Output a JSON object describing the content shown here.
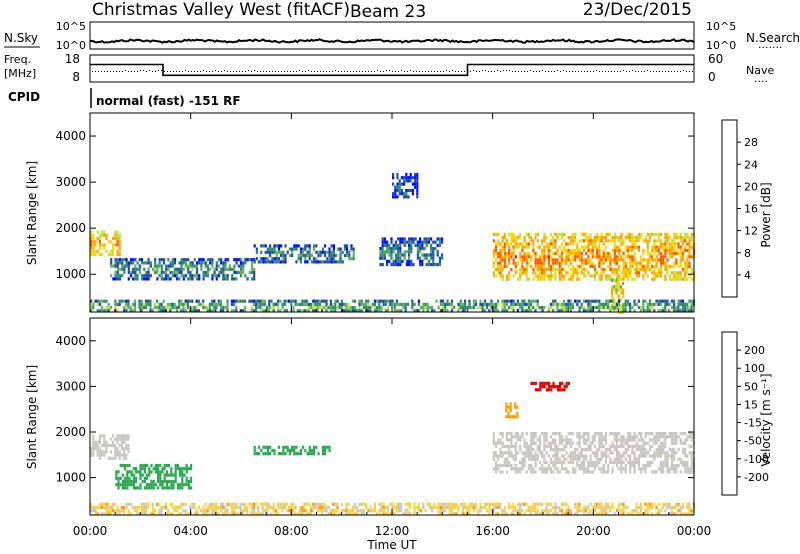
{
  "header": {
    "station": "Christmas Valley West (fitACF)",
    "beam": "Beam 23",
    "date": "23/Dec/2015"
  },
  "sky_panel": {
    "left_label": "N.Sky",
    "left_ticks": [
      "10^5",
      "10^0"
    ],
    "right_ticks": [
      "10^5",
      "10^0"
    ],
    "right_label": "N.Search",
    "right_legend_dots": "......."
  },
  "freq_panel": {
    "label_top": "Freq.",
    "label_unit": "[MHz]",
    "left_ticks": [
      "18",
      "8"
    ],
    "right_ticks": [
      "60",
      "0"
    ],
    "right_label": "Nave",
    "right_legend_dots": "...."
  },
  "cpid": {
    "label": "CPID",
    "text": "normal (fast) -151 RF"
  },
  "power_panel": {
    "ylabel": "Slant Range [km]",
    "yticks": [
      "4000",
      "3000",
      "2000",
      "1000"
    ],
    "colorbar_label": "Power [dB]",
    "colorbar_ticks": [
      "28",
      "24",
      "20",
      "16",
      "12",
      "8",
      "4"
    ],
    "colors": [
      "#e80000",
      "#ff5a00",
      "#ffa500",
      "#ffd500",
      "#b9e63c",
      "#5fb35f",
      "#2f8a6e",
      "#1e4ea8",
      "#0010ff"
    ]
  },
  "velocity_panel": {
    "ylabel": "Slant Range [km]",
    "yticks": [
      "4000",
      "3000",
      "2000",
      "1000"
    ],
    "colorbar_label": "Velocity [m s⁻¹]",
    "colorbar_ticks": [
      "200",
      "100",
      "50",
      "15",
      "-15",
      "-50",
      "-100",
      "-200"
    ],
    "colors": [
      "#1a22b0",
      "#1f66b8",
      "#2aa84e",
      "#7ed23a",
      "#c8c8c0",
      "#ffd23c",
      "#ff9a00",
      "#ff4a00",
      "#e80000"
    ],
    "ground_scatter_color": "#c8c8c0"
  },
  "time_axis": {
    "label": "Time UT",
    "ticks": [
      "00:00",
      "04:00",
      "08:00",
      "12:00",
      "16:00",
      "20:00",
      "00:00"
    ]
  },
  "chart_data": {
    "type": "heatmap",
    "title": "Christmas Valley West (fitACF) Beam 23",
    "date": "23/Dec/2015",
    "x_range_hours_ut": [
      0,
      24
    ],
    "y_range_km": [
      180,
      4500
    ],
    "frequency": {
      "segments": [
        {
          "start_h": 0.0,
          "end_h": 2.9,
          "mhz": 14.5
        },
        {
          "start_h": 2.9,
          "end_h": 15.0,
          "mhz": 10.5
        },
        {
          "start_h": 15.0,
          "end_h": 24.0,
          "mhz": 14.5
        }
      ]
    },
    "power_regions": [
      {
        "t0": 0.0,
        "t1": 1.2,
        "r0": 1450,
        "r1": 1950,
        "power_db": 22
      },
      {
        "t0": 0.8,
        "t1": 6.5,
        "r0": 900,
        "r1": 1350,
        "power_db": 10
      },
      {
        "t0": 6.5,
        "t1": 10.5,
        "r0": 1250,
        "r1": 1650,
        "power_db": 9
      },
      {
        "t0": 11.5,
        "t1": 14.0,
        "r0": 1200,
        "r1": 1800,
        "power_db": 8
      },
      {
        "t0": 16.0,
        "t1": 24.0,
        "r0": 900,
        "r1": 1900,
        "power_db": 24
      },
      {
        "t0": 20.7,
        "t1": 21.2,
        "r0": 200,
        "r1": 900,
        "power_db": 20
      },
      {
        "t0": 12.0,
        "t1": 13.0,
        "r0": 2700,
        "r1": 3200,
        "power_db": 6
      },
      {
        "t0": 0.0,
        "t1": 24.0,
        "r0": 180,
        "r1": 450,
        "power_db": 12
      }
    ],
    "velocity_regions": [
      {
        "t0": 0.0,
        "t1": 1.5,
        "r0": 1450,
        "r1": 1950,
        "velocity_ms": 0
      },
      {
        "t0": 1.0,
        "t1": 4.0,
        "r0": 800,
        "r1": 1300,
        "velocity_ms": 60
      },
      {
        "t0": 6.5,
        "t1": 9.5,
        "r0": 1500,
        "r1": 1700,
        "velocity_ms": 60
      },
      {
        "t0": 16.0,
        "t1": 24.0,
        "r0": 1100,
        "r1": 2000,
        "velocity_ms": 0
      },
      {
        "t0": 17.5,
        "t1": 19.0,
        "r0": 2950,
        "r1": 3100,
        "velocity_ms": -200
      },
      {
        "t0": 16.5,
        "t1": 17.0,
        "r0": 2350,
        "r1": 2650,
        "velocity_ms": -60
      },
      {
        "t0": 0.0,
        "t1": 24.0,
        "r0": 180,
        "r1": 450,
        "velocity_ms": -20
      }
    ]
  }
}
